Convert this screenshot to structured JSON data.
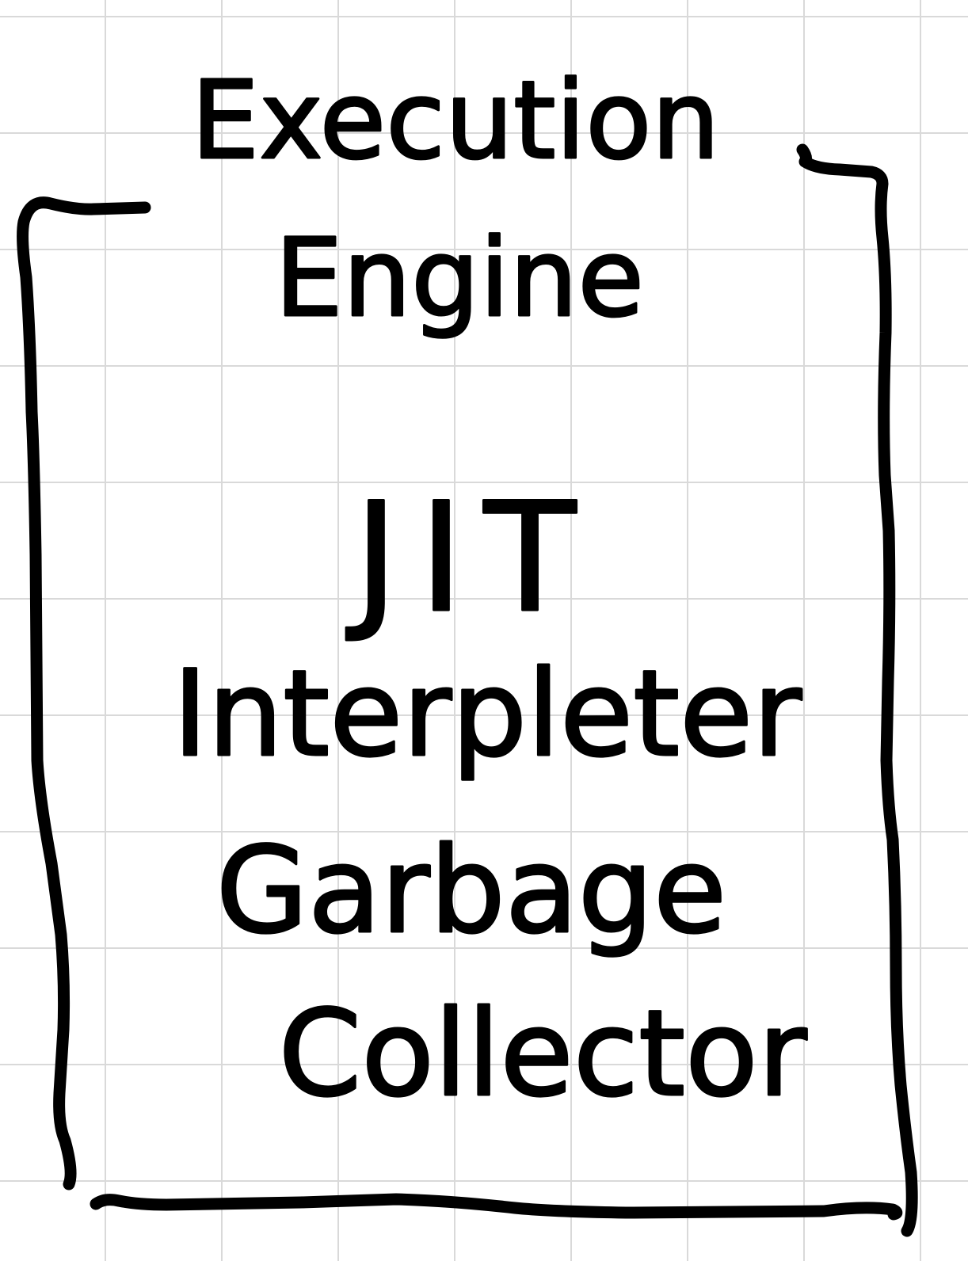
{
  "diagram": {
    "title_lines": [
      "Execution",
      "Engine"
    ],
    "components": [
      {
        "id": "jit",
        "label": "JIT"
      },
      {
        "id": "interpreter",
        "label": "Interpleter"
      },
      {
        "id": "gc-line1",
        "label": "Garbage"
      },
      {
        "id": "gc-line2",
        "label": "Collector"
      }
    ],
    "ink_color": "#000000",
    "grid_color": "#d9d9d9"
  }
}
